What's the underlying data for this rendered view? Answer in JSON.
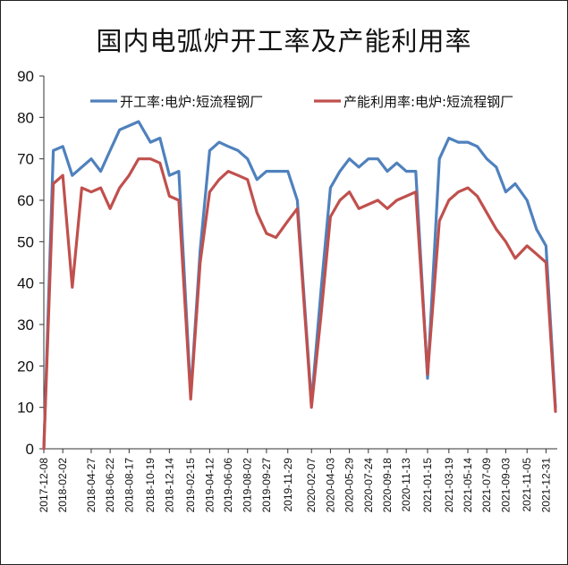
{
  "chart_data": {
    "type": "line",
    "title": "国内电弧炉开工率及产能利用率",
    "xlabel": "",
    "ylabel": "",
    "ylim": [
      0,
      90
    ],
    "yticks": [
      0,
      10,
      20,
      30,
      40,
      50,
      60,
      70,
      80,
      90
    ],
    "grid": false,
    "legend_position": "top",
    "x_tick_labels": [
      "2017-12-08",
      "2018-02-02",
      "2018-04-27",
      "2018-06-22",
      "2018-08-17",
      "2018-10-19",
      "2018-12-14",
      "2019-02-15",
      "2019-04-12",
      "2019-06-06",
      "2019-08-02",
      "2019-09-27",
      "2019-11-29",
      "2020-02-07",
      "2020-04-03",
      "2020-05-29",
      "2020-07-24",
      "2020-09-18",
      "2020-11-13",
      "2021-01-15",
      "2021-03-19",
      "2021-05-14",
      "2021-07-09",
      "2021-09-03",
      "2021-11-05",
      "2021-12-31"
    ],
    "x": [
      "2017-12-08",
      "2018-01-05",
      "2018-02-02",
      "2018-03-02",
      "2018-03-30",
      "2018-04-27",
      "2018-05-25",
      "2018-06-22",
      "2018-07-20",
      "2018-08-17",
      "2018-09-14",
      "2018-10-19",
      "2018-11-16",
      "2018-12-14",
      "2019-01-11",
      "2019-02-15",
      "2019-03-15",
      "2019-04-12",
      "2019-05-10",
      "2019-06-06",
      "2019-07-05",
      "2019-08-02",
      "2019-08-30",
      "2019-09-27",
      "2019-10-25",
      "2019-11-29",
      "2019-12-27",
      "2020-02-07",
      "2020-03-06",
      "2020-04-03",
      "2020-05-01",
      "2020-05-29",
      "2020-06-26",
      "2020-07-24",
      "2020-08-21",
      "2020-09-18",
      "2020-10-16",
      "2020-11-13",
      "2020-12-11",
      "2021-01-15",
      "2021-02-19",
      "2021-03-19",
      "2021-04-16",
      "2021-05-14",
      "2021-06-11",
      "2021-07-09",
      "2021-08-06",
      "2021-09-03",
      "2021-10-01",
      "2021-11-05",
      "2021-12-03",
      "2021-12-31",
      "2022-01-28"
    ],
    "series": [
      {
        "name": "开工率:电炉:短流程钢厂",
        "color": "#4f81bd",
        "values": [
          0,
          72,
          73,
          66,
          68,
          70,
          67,
          72,
          77,
          78,
          79,
          74,
          75,
          66,
          67,
          13,
          48,
          72,
          74,
          73,
          72,
          70,
          65,
          67,
          67,
          67,
          60,
          11,
          38,
          63,
          67,
          70,
          68,
          70,
          70,
          67,
          69,
          67,
          67,
          17,
          70,
          75,
          74,
          74,
          73,
          70,
          68,
          62,
          64,
          60,
          53,
          49,
          10
        ]
      },
      {
        "name": "产能利用率:电炉:短流程钢厂",
        "color": "#c0504d",
        "values": [
          0,
          64,
          66,
          39,
          63,
          62,
          63,
          58,
          63,
          66,
          70,
          70,
          69,
          61,
          60,
          12,
          45,
          62,
          65,
          67,
          66,
          65,
          57,
          52,
          51,
          55,
          58,
          10,
          32,
          56,
          60,
          62,
          58,
          59,
          60,
          58,
          60,
          61,
          62,
          18,
          55,
          60,
          62,
          63,
          61,
          57,
          53,
          50,
          46,
          49,
          47,
          45,
          9
        ]
      }
    ]
  }
}
